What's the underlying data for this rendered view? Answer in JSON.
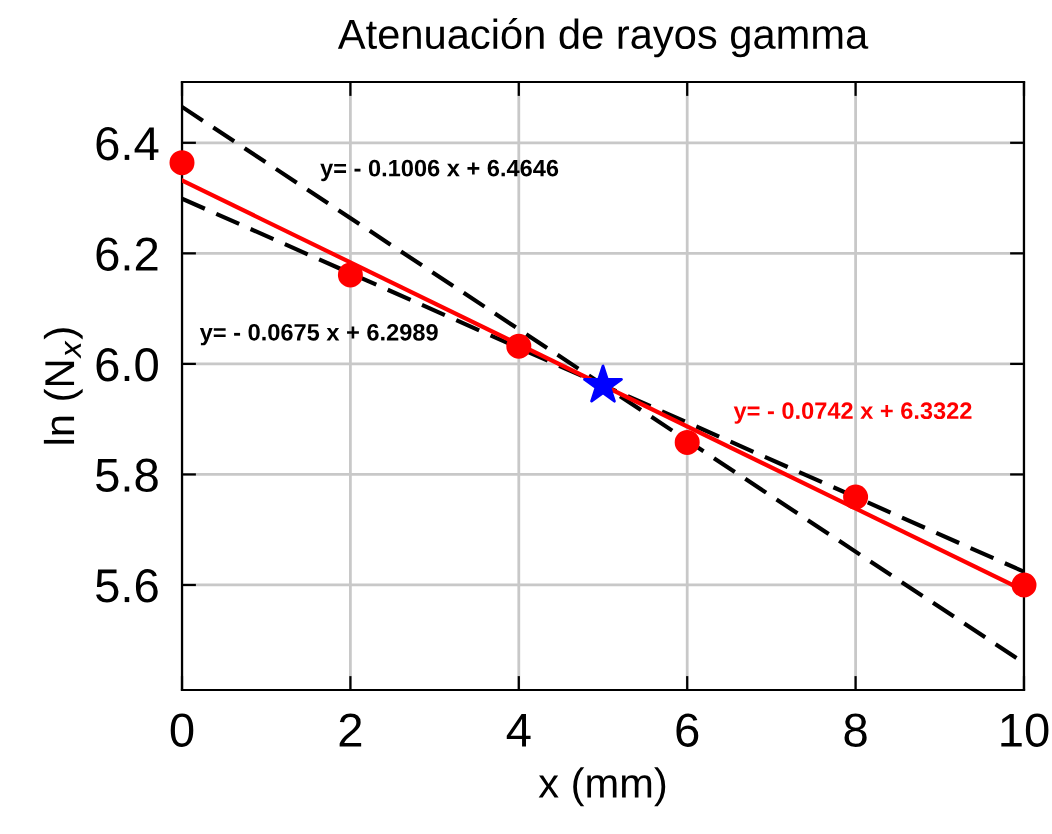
{
  "chart_data": {
    "type": "scatter",
    "title": "Atenuación de rayos gamma",
    "xlabel": "x (mm)",
    "ylabel": "ln (N$_{x}$)",
    "xlim": [
      0,
      10
    ],
    "xticks": [
      0,
      2,
      4,
      6,
      8,
      10
    ],
    "ylim": [
      5.41,
      6.51
    ],
    "yticks": [
      5.6,
      5.8,
      {
        "value": 6,
        "label": "6.0"
      },
      6.2,
      6.4
    ],
    "grid": true,
    "series": [
      {
        "type": "line",
        "color": "#000000",
        "line_style": "dashed",
        "marker": "none",
        "x": [
          0,
          10
        ],
        "values": [
          6.465,
          5.459
        ]
      },
      {
        "type": "line",
        "color": "#000000",
        "line_style": "dashed",
        "marker": "none",
        "x": [
          0,
          10
        ],
        "values": [
          6.299,
          5.624
        ]
      },
      {
        "type": "line",
        "color": "#ff0000",
        "line_style": "solid",
        "marker": "none",
        "x": [
          0,
          10
        ],
        "values": [
          6.332,
          5.59
        ]
      },
      {
        "color": "#ff0000",
        "marker": "circle",
        "x": [
          0,
          2,
          4,
          6,
          8,
          10
        ],
        "values": [
          6.364,
          6.161,
          6.032,
          5.858,
          5.759,
          5.6
        ]
      },
      {
        "color": "#0000ff",
        "marker": "star",
        "x": [
          5
        ],
        "values": [
          5.961
        ]
      }
    ],
    "annotations": [
      "y= - 0.1006 x + 6.4646",
      "y= - 0.0675 x + 6.2989",
      "y= - 0.0742 x + 6.3322"
    ]
  }
}
